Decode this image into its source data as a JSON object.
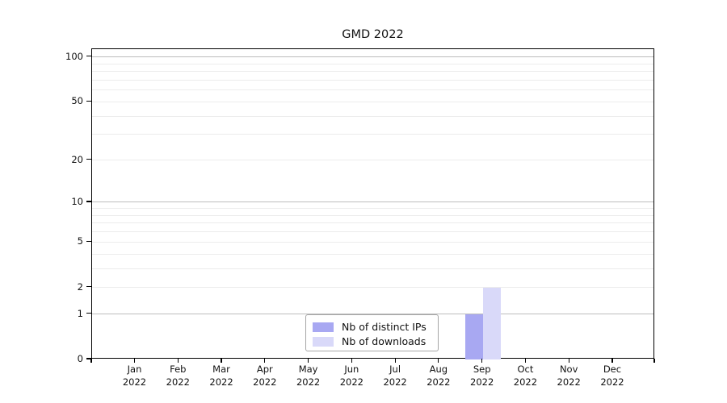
{
  "title": "GMD 2022",
  "chart_data": {
    "type": "bar",
    "title": "GMD 2022",
    "y_scale": "log1p",
    "ylim": [
      0,
      113
    ],
    "grid": "both",
    "legend_position": "lower center",
    "categories": [
      "Jan 2022",
      "Feb 2022",
      "Mar 2022",
      "Apr 2022",
      "May 2022",
      "Jun 2022",
      "Jul 2022",
      "Aug 2022",
      "Sep 2022",
      "Oct 2022",
      "Nov 2022",
      "Dec 2022"
    ],
    "series": [
      {
        "name": "Nb of distinct IPs",
        "color": "#a8a8f2",
        "values": [
          0,
          0,
          0,
          0,
          0,
          0,
          0,
          0,
          1,
          0,
          0,
          0
        ]
      },
      {
        "name": "Nb of downloads",
        "color": "#d9d9f9",
        "values": [
          0,
          0,
          0,
          0,
          0,
          0,
          0,
          0,
          2,
          0,
          0,
          0
        ]
      }
    ],
    "y_tick_labels": [
      "0",
      "1",
      "2",
      "5",
      "10",
      "20",
      "50",
      "100"
    ],
    "y_tick_values": [
      0,
      1,
      2,
      5,
      10,
      20,
      50,
      100
    ],
    "y_major_gridlines": [
      1,
      10,
      100
    ],
    "y_minor_gridlines": [
      2,
      3,
      4,
      5,
      6,
      7,
      8,
      9,
      20,
      30,
      40,
      50,
      60,
      70,
      80,
      90
    ],
    "colors": {
      "major_grid": "#bdbdbd",
      "minor_grid": "#ececec",
      "spine": "#000000",
      "text": "#111111"
    }
  }
}
